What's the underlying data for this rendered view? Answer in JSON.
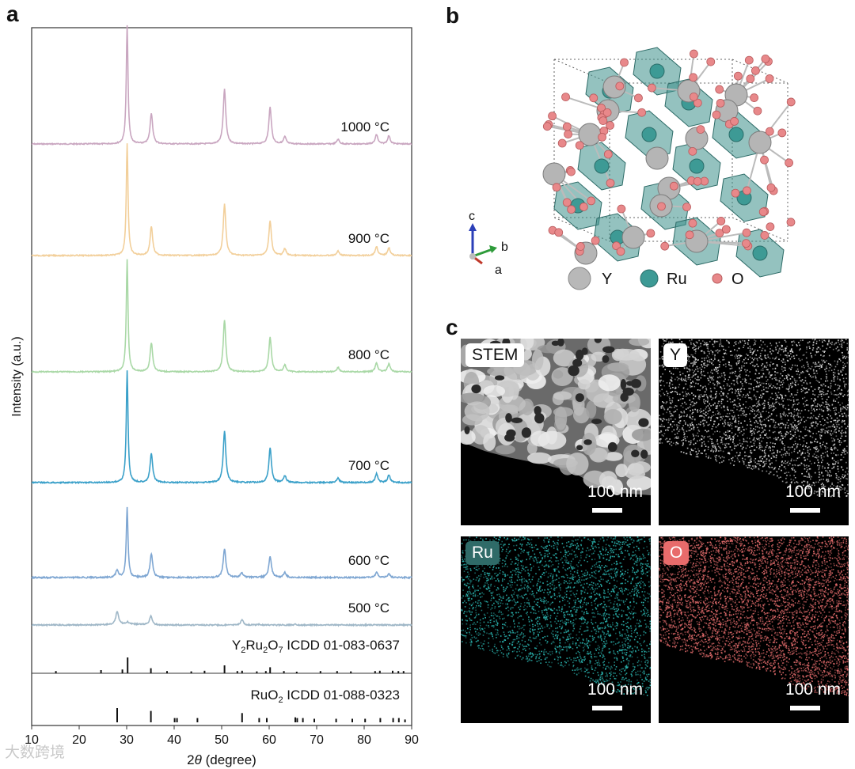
{
  "panels": {
    "a": "a",
    "b": "b",
    "c": "c"
  },
  "chart_data": {
    "type": "line",
    "title": "",
    "xlabel_prefix": "2",
    "xlabel_var": "θ",
    "xlabel_suffix": " (degree)",
    "ylabel": "Intensity (a.u.)",
    "xlim": [
      10,
      90
    ],
    "xticks": [
      10,
      20,
      30,
      40,
      50,
      60,
      70,
      80,
      90
    ],
    "series": [
      {
        "name": "1000 °C",
        "color": "#c9a6c0",
        "peaks": [
          [
            30.1,
            100
          ],
          [
            35.2,
            26
          ],
          [
            50.6,
            46
          ],
          [
            60.2,
            31
          ],
          [
            63.3,
            6
          ],
          [
            74.5,
            4
          ],
          [
            82.6,
            8
          ],
          [
            85.2,
            7
          ]
        ]
      },
      {
        "name": "900 °C",
        "color": "#f2cf9a",
        "peaks": [
          [
            30.1,
            100
          ],
          [
            35.2,
            26
          ],
          [
            50.6,
            46
          ],
          [
            60.2,
            31
          ],
          [
            63.3,
            6
          ],
          [
            74.5,
            4
          ],
          [
            82.6,
            8
          ],
          [
            85.2,
            7
          ]
        ]
      },
      {
        "name": "800 °C",
        "color": "#a9d8a6",
        "peaks": [
          [
            30.1,
            100
          ],
          [
            35.2,
            26
          ],
          [
            50.6,
            46
          ],
          [
            60.2,
            31
          ],
          [
            63.3,
            6
          ],
          [
            74.5,
            4
          ],
          [
            82.6,
            8
          ],
          [
            85.2,
            7
          ]
        ]
      },
      {
        "name": "700 °C",
        "color": "#3aa0c9",
        "peaks": [
          [
            30.1,
            100
          ],
          [
            35.2,
            26
          ],
          [
            50.6,
            46
          ],
          [
            60.2,
            31
          ],
          [
            63.3,
            6
          ],
          [
            74.5,
            4
          ],
          [
            82.6,
            8
          ],
          [
            85.2,
            7
          ]
        ]
      },
      {
        "name": "600 °C",
        "color": "#7ea6d2",
        "peaks": [
          [
            28.0,
            6
          ],
          [
            30.1,
            55
          ],
          [
            35.2,
            19
          ],
          [
            50.6,
            23
          ],
          [
            54.2,
            4
          ],
          [
            60.2,
            17
          ],
          [
            63.3,
            4
          ],
          [
            82.6,
            4
          ],
          [
            85.2,
            3
          ]
        ]
      },
      {
        "name": "500 °C",
        "color": "#9fb7c7",
        "peaks": [
          [
            28.0,
            30
          ],
          [
            30.2,
            5
          ],
          [
            35.1,
            20
          ],
          [
            54.3,
            12
          ],
          [
            57.9,
            2
          ],
          [
            65.5,
            2
          ]
        ]
      }
    ],
    "references": [
      {
        "label_main": "Y",
        "label_sub1": "2",
        "label_mid": "Ru",
        "label_sub2": "2",
        "label_end": "O",
        "label_sub3": "7",
        "label_code": " ICDD 01-083-0637",
        "lines": [
          [
            15.1,
            14
          ],
          [
            24.6,
            20
          ],
          [
            29.1,
            24
          ],
          [
            30.2,
            100
          ],
          [
            35.1,
            32
          ],
          [
            38.5,
            14
          ],
          [
            43.6,
            12
          ],
          [
            46.4,
            16
          ],
          [
            50.6,
            50
          ],
          [
            53.3,
            14
          ],
          [
            54.3,
            16
          ],
          [
            57.4,
            12
          ],
          [
            59.3,
            14
          ],
          [
            60.2,
            38
          ],
          [
            63.1,
            14
          ],
          [
            65.8,
            10
          ],
          [
            70.8,
            14
          ],
          [
            74.3,
            14
          ],
          [
            77.2,
            12
          ],
          [
            82.3,
            14
          ],
          [
            83.3,
            16
          ],
          [
            86.0,
            16
          ],
          [
            87.2,
            14
          ],
          [
            88.3,
            14
          ]
        ]
      },
      {
        "label_main": "RuO",
        "label_sub1": "2",
        "label_code": " ICDD 01-088-0323",
        "lines": [
          [
            28.0,
            100
          ],
          [
            35.1,
            80
          ],
          [
            40.1,
            30
          ],
          [
            40.6,
            30
          ],
          [
            44.9,
            30
          ],
          [
            54.3,
            65
          ],
          [
            57.9,
            30
          ],
          [
            59.5,
            30
          ],
          [
            65.5,
            35
          ],
          [
            65.9,
            30
          ],
          [
            67.1,
            30
          ],
          [
            69.5,
            25
          ],
          [
            74.1,
            25
          ],
          [
            77.5,
            25
          ],
          [
            80.2,
            25
          ],
          [
            83.4,
            30
          ],
          [
            86.1,
            30
          ],
          [
            87.3,
            30
          ],
          [
            88.6,
            20
          ]
        ]
      }
    ]
  },
  "crystal": {
    "axes": {
      "c": "c",
      "b": "b",
      "a": "a"
    },
    "legend": [
      {
        "symbol": "Y",
        "label": "Y",
        "color": "#b8b8b8"
      },
      {
        "symbol": "Ru",
        "label": "Ru",
        "color": "#3d9a95"
      },
      {
        "symbol": "O",
        "label": "O",
        "color": "#e8888a"
      }
    ]
  },
  "maps": [
    {
      "id": "stem",
      "label": "STEM",
      "tag_bg": "#ffffff",
      "tag_color": "#111111",
      "scale": "100 nm"
    },
    {
      "id": "y",
      "label": "Y",
      "tag_bg": "#ffffff",
      "tag_color": "#111111",
      "scale": "100 nm"
    },
    {
      "id": "ru",
      "label": "Ru",
      "tag_bg": "#2f6b68",
      "tag_color": "#ffffff",
      "scale": "100 nm"
    },
    {
      "id": "o",
      "label": "O",
      "tag_bg": "#e86b6b",
      "tag_color": "#ffffff",
      "scale": "100 nm"
    }
  ],
  "watermark": "大数跨境"
}
